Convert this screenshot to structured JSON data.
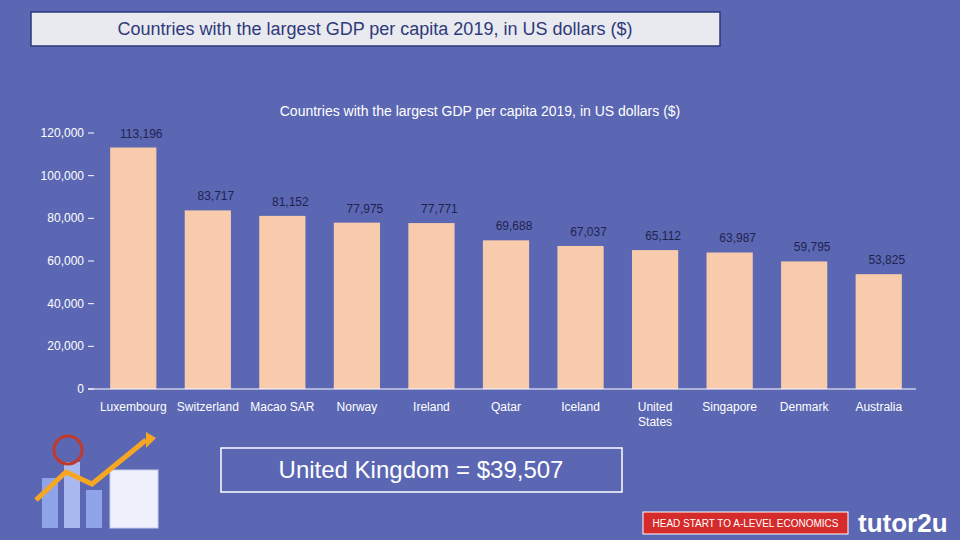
{
  "chart_data": {
    "type": "bar",
    "title": "Countries with the largest GDP per capita 2019, in US dollars ($)",
    "subtitle": "Countries with the largest GDP per capita 2019, in US dollars ($)",
    "categories": [
      "Luxembourg",
      "Switzerland",
      "Macao SAR",
      "Norway",
      "Ireland",
      "Qatar",
      "Iceland",
      "United States",
      "Singapore",
      "Denmark",
      "Australia"
    ],
    "values": [
      113196,
      83717,
      81152,
      77975,
      77771,
      69688,
      67037,
      65112,
      63987,
      59795,
      53825
    ],
    "value_labels": [
      "113,196",
      "83,717",
      "81,152",
      "77,975",
      "77,771",
      "69,688",
      "67,037",
      "65,112",
      "63,987",
      "59,795",
      "53,825"
    ],
    "color": "#f8cbad",
    "ylim": [
      0,
      120000
    ],
    "yticks": [
      0,
      {
        "value": 20000,
        "label": "20,000"
      },
      {
        "value": 40000,
        "label": "40,000"
      },
      {
        "value": 60000,
        "label": "60,000"
      },
      {
        "value": 80000,
        "label": "80,000"
      },
      {
        "value": 100000,
        "label": "100,000"
      },
      {
        "value": 120000,
        "label": "120,000"
      }
    ],
    "grid": false,
    "data_labels": true,
    "annotations": [
      "United Kingdom = $39,507",
      "HEAD START TO A-LEVEL ECONOMICS",
      "tutor2u"
    ]
  }
}
